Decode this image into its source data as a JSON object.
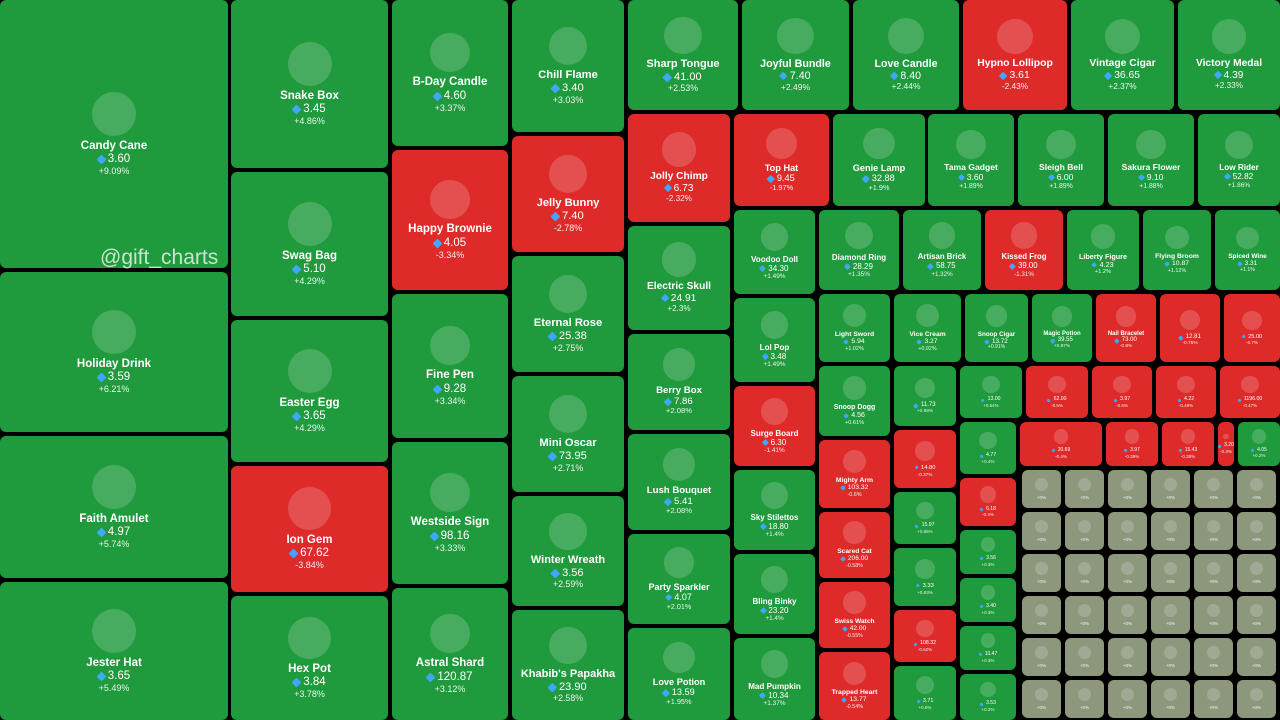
{
  "watermark": "@gift_charts",
  "tiles": [
    {
      "name": "Candy Cane",
      "price": "3.60",
      "change": "+9.09%"
    },
    {
      "name": "Holiday Drink",
      "price": "3.59",
      "change": "+6.21%"
    },
    {
      "name": "Faith Amulet",
      "price": "4.97",
      "change": "+5.74%"
    },
    {
      "name": "Jester Hat",
      "price": "3.65",
      "change": "+5.49%"
    },
    {
      "name": "Snake Box",
      "price": "3.45",
      "change": "+4.86%"
    },
    {
      "name": "Swag Bag",
      "price": "5.10",
      "change": "+4.29%"
    },
    {
      "name": "Easter Egg",
      "price": "3.65",
      "change": "+4.29%"
    },
    {
      "name": "Ion Gem",
      "price": "67.62",
      "change": "-3.84%"
    },
    {
      "name": "Hex Pot",
      "price": "3.84",
      "change": "+3.78%"
    },
    {
      "name": "B-Day Candle",
      "price": "4.60",
      "change": "+3.37%"
    },
    {
      "name": "Happy Brownie",
      "price": "4.05",
      "change": "-3.34%"
    },
    {
      "name": "Fine Pen",
      "price": "9.28",
      "change": "+3.34%"
    },
    {
      "name": "Westside Sign",
      "price": "98.16",
      "change": "+3.33%"
    },
    {
      "name": "Astral Shard",
      "price": "120.87",
      "change": "+3.12%"
    },
    {
      "name": "Chill Flame",
      "price": "3.40",
      "change": "+3.03%"
    },
    {
      "name": "Jelly Bunny",
      "price": "7.40",
      "change": "-2.78%"
    },
    {
      "name": "Eternal Rose",
      "price": "25.38",
      "change": "+2.75%"
    },
    {
      "name": "Mini Oscar",
      "price": "73.95",
      "change": "+2.71%"
    },
    {
      "name": "Winter Wreath",
      "price": "3.56",
      "change": "+2.59%"
    },
    {
      "name": "Khabib's Papakha",
      "price": "23.90",
      "change": "+2.58%"
    },
    {
      "name": "Sharp Tongue",
      "price": "41.00",
      "change": "+2.53%"
    },
    {
      "name": "Joyful Bundle",
      "price": "7.40",
      "change": "+2.49%"
    },
    {
      "name": "Love Candle",
      "price": "8.40",
      "change": "+2.44%"
    },
    {
      "name": "Hypno Lollipop",
      "price": "3.61",
      "change": "-2.43%"
    },
    {
      "name": "Vintage Cigar",
      "price": "36.65",
      "change": "+2.37%"
    },
    {
      "name": "Victory Medal",
      "price": "4.39",
      "change": "+2.33%"
    },
    {
      "name": "Jolly Chimp",
      "price": "6.73",
      "change": "-2.32%"
    },
    {
      "name": "Electric Skull",
      "price": "24.91",
      "change": "+2.3%"
    },
    {
      "name": "Berry Box",
      "price": "7.86",
      "change": "+2.08%"
    },
    {
      "name": "Lush Bouquet",
      "price": "5.41",
      "change": "+2.08%"
    },
    {
      "name": "Party Sparkler",
      "price": "4.07",
      "change": "+2.01%"
    },
    {
      "name": "Love Potion",
      "price": "13.59",
      "change": "+1.95%"
    },
    {
      "name": "Top Hat",
      "price": "9.45",
      "change": "-1.97%"
    },
    {
      "name": "Genie Lamp",
      "price": "32.88",
      "change": "+1.9%"
    },
    {
      "name": "Tama Gadget",
      "price": "3.60",
      "change": "+1.89%"
    },
    {
      "name": "Sleigh Bell",
      "price": "6.00",
      "change": "+1.89%"
    },
    {
      "name": "Sakura Flower",
      "price": "9.10",
      "change": "+1.88%"
    },
    {
      "name": "Low Rider",
      "price": "52.82",
      "change": "+1.86%"
    },
    {
      "name": "Voodoo Doll",
      "price": "34.30",
      "change": "+1.49%"
    },
    {
      "name": "Lol Pop",
      "price": "3.48",
      "change": "+1.49%"
    },
    {
      "name": "Surge Board",
      "price": "6.30",
      "change": "-1.41%"
    },
    {
      "name": "Sky Stilettos",
      "price": "18.80",
      "change": "+1.4%"
    },
    {
      "name": "Bling Binky",
      "price": "23.20",
      "change": "+1.4%"
    },
    {
      "name": "Mad Pumpkin",
      "price": "10.34",
      "change": "+1.37%"
    },
    {
      "name": "Diamond Ring",
      "price": "28.29",
      "change": "+1.35%"
    },
    {
      "name": "Artisan Brick",
      "price": "58.75",
      "change": "+1.32%"
    },
    {
      "name": "Kissed Frog",
      "price": "39.00",
      "change": "-1.31%"
    },
    {
      "name": "Liberty Figure",
      "price": "4.23",
      "change": "+1.2%"
    },
    {
      "name": "Flying Broom",
      "price": "10.87",
      "change": "+1.12%"
    },
    {
      "name": "Spiced Wine",
      "price": "3.31",
      "change": "+1.1%"
    },
    {
      "name": "Light Sword",
      "price": "5.94",
      "change": "+1.02%"
    },
    {
      "name": "Vice Cream",
      "price": "3.27",
      "change": "+0.92%"
    },
    {
      "name": "Snoop Cigar",
      "price": "13.72",
      "change": "+0.91%"
    },
    {
      "name": "Magic Potion",
      "price": "39.55",
      "change": "+0.87%"
    },
    {
      "name": "Nail Bracelet",
      "price": "73.00",
      "change": "-0.8%"
    },
    {
      "price": "12.81",
      "change": "-0.75%"
    },
    {
      "price": "25.00",
      "change": "-0.7%"
    },
    {
      "name": "Snoop Dogg",
      "price": "4.56",
      "change": "+0.61%"
    },
    {
      "name": "Mighty Arm",
      "price": "103.32",
      "change": "-0.6%"
    },
    {
      "name": "Scared Cat",
      "price": "206.00",
      "change": "-0.58%"
    },
    {
      "name": "Swiss Watch",
      "price": "42.00",
      "change": "-0.55%"
    },
    {
      "name": "Trapped Heart",
      "price": "13.77",
      "change": "-0.54%"
    },
    {
      "price": "11.73",
      "change": "+0.68%"
    },
    {
      "price": "13.00",
      "change": "+0.54%"
    },
    {
      "price": "62.00",
      "change": "-0.5%"
    },
    {
      "price": "3.97",
      "change": "-0.5%"
    },
    {
      "price": "4.22",
      "change": "-0.49%"
    },
    {
      "price": "1196.00",
      "change": "-0.47%"
    },
    {
      "price": "14.80",
      "change": "-0.37%"
    },
    {
      "price": "4.77",
      "change": "+0.4%"
    },
    {
      "price": "20.69",
      "change": "-0.4%"
    },
    {
      "price": "3.97",
      "change": "-0.39%"
    },
    {
      "price": "15.43",
      "change": "-0.38%"
    },
    {
      "price": "3.20",
      "change": "-0.3%"
    },
    {
      "price": "4.05",
      "change": "+0.2%"
    },
    {
      "price": "15.97",
      "change": "+0.65%"
    },
    {
      "price": "3.33",
      "change": "+0.63%"
    },
    {
      "price": "108.32",
      "change": "-0.62%"
    },
    {
      "price": "3.71",
      "change": "+0.6%"
    },
    {
      "price": "6.18",
      "change": "-0.4%"
    },
    {
      "price": "3.56",
      "change": "+0.3%"
    },
    {
      "price": "3.40",
      "change": "+0.3%"
    },
    {
      "price": "10.47",
      "change": "+0.3%"
    },
    {
      "price": "3.53",
      "change": "+0.2%"
    },
    {
      "change": "+0%"
    },
    {
      "change": "+0%"
    },
    {
      "change": "+0%"
    },
    {
      "change": "+0%"
    },
    {
      "change": "+0%"
    },
    {
      "change": "+0%"
    },
    {
      "change": "+0%"
    },
    {
      "change": "+0%"
    },
    {
      "change": "+0%"
    },
    {
      "change": "+0%"
    },
    {
      "change": "+0%"
    },
    {
      "change": "+0%"
    },
    {
      "change": "+0%"
    },
    {
      "change": "+0%"
    },
    {
      "change": "+0%"
    },
    {
      "change": "+0%"
    },
    {
      "change": "+0%"
    },
    {
      "change": "+0%"
    },
    {
      "change": "+0%"
    },
    {
      "change": "+0%"
    },
    {
      "change": "+0%"
    },
    {
      "change": "+0%"
    },
    {
      "change": "+0%"
    },
    {
      "change": "+0%"
    },
    {
      "change": "+0%"
    },
    {
      "change": "+0%"
    },
    {
      "change": "+0%"
    },
    {
      "change": "+0%"
    },
    {
      "change": "+0%"
    },
    {
      "change": "+0%"
    },
    {
      "change": "+0%"
    },
    {
      "change": "+0%"
    },
    {
      "change": "+0%"
    },
    {
      "change": "+0%"
    },
    {
      "change": "+0%"
    },
    {
      "change": "+0%"
    }
  ]
}
